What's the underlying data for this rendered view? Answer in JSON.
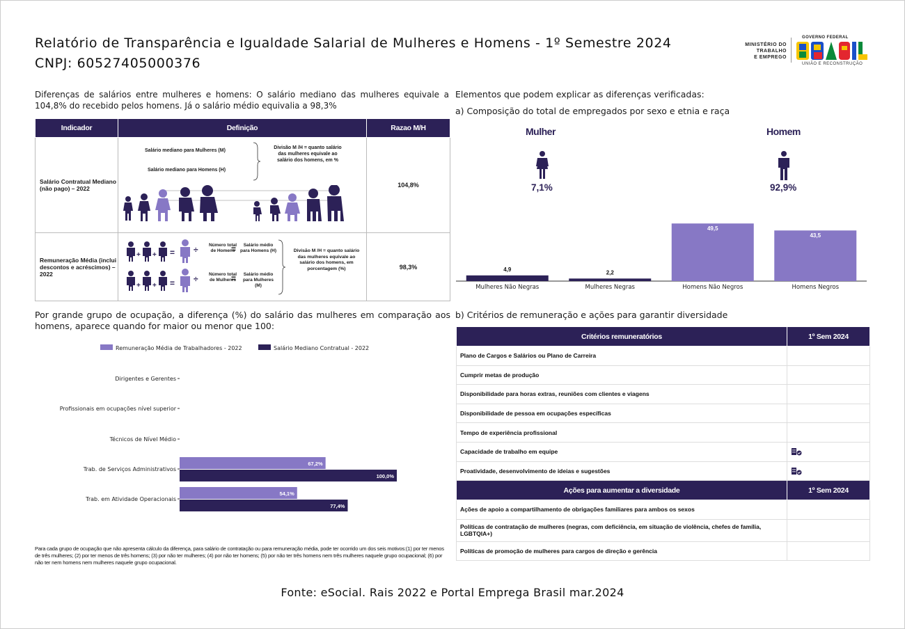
{
  "header": {
    "title": "Relatório de Transparência e Igualdade Salarial de Mulheres e Homens - 1º Semestre 2024",
    "cnpj": "CNPJ: 60527405000376",
    "ministerio": [
      "MINISTÉRIO DO",
      "TRABALHO",
      "E EMPREGO"
    ],
    "gov_top": "GOVERNO FEDERAL",
    "gov_brand": "BRASIL",
    "gov_bottom": "UNIÃO E RECONSTRUÇÃO"
  },
  "intro": "Diferenças de salários entre mulheres e homens: O salário mediano das mulheres equivale a 104,8% do recebido pelos homens. Já o salário médio equivalia a 98,3%",
  "indicator_table": {
    "headers": [
      "Indicador",
      "Definição",
      "Razao M/H"
    ],
    "rows": [
      {
        "indicator": "Salário Contratual Mediano (não pago) – 2022",
        "ratio": "104,8%",
        "def_line1": "Salário mediano para Mulheres (M)",
        "def_line2": "Salário mediano para Homens (H)",
        "def_note": "Divisão M /H = quanto salário das mulheres equivale ao salário dos homens, em %"
      },
      {
        "indicator": "Remuneração Média (inclui descontos e acréscimos) – 2022",
        "ratio": "98,3%",
        "num_homens": "Número total de Homens",
        "num_mulheres": "Número total de Mulheres",
        "sal_homens": "Salário médio para Homens (H)",
        "sal_mulheres": "Salário médio para Mulheres (M)",
        "def_note": "Divisão M /H = quanto salário das mulheres equivale ao salário dos homens, em porcentagem (%)"
      }
    ]
  },
  "right": {
    "heading": "Elementos que podem explicar as diferenças verificadas:",
    "sub_a": "a) Composição do total de empregados por sexo e etnia e raça",
    "mulher_label": "Mulher",
    "mulher_pct": "7,1%",
    "homem_label": "Homem",
    "homem_pct": "92,9%",
    "sub_b": "b) Critérios de remuneração e ações para garantir diversidade"
  },
  "chart_data": [
    {
      "type": "bar",
      "categories": [
        "Mulheres Não Negras",
        "Mulheres Negras",
        "Homens Não Negros",
        "Homens Negros"
      ],
      "values": [
        4.9,
        2.2,
        49.5,
        43.5
      ],
      "value_labels": [
        "4,9",
        "2,2",
        "49,5",
        "43,5"
      ],
      "colors": [
        "#2c2157",
        "#2c2157",
        "#8778c5",
        "#8778c5"
      ],
      "ylim": [
        0,
        55
      ]
    },
    {
      "type": "bar",
      "orientation": "horizontal",
      "categories": [
        "Dirigentes e Gerentes",
        "Profissionais em ocupações nível superior",
        "Técnicos de Nível Médio",
        "Trab. de Serviços Administrativos",
        "Trab. em Atividade Operacionais"
      ],
      "series": [
        {
          "name": "Remuneração Média de Trabalhadores - 2022",
          "color": "#8778c5",
          "values": [
            null,
            null,
            null,
            67.2,
            54.1
          ],
          "labels": [
            "",
            "",
            "",
            "67,2%",
            "54,1%"
          ]
        },
        {
          "name": "Salário Mediano Contratual - 2022",
          "color": "#2c2157",
          "values": [
            null,
            null,
            null,
            100.0,
            77.4
          ],
          "labels": [
            "",
            "",
            "",
            "100,0%",
            "77,4%"
          ]
        }
      ],
      "xlim": [
        0,
        100
      ]
    }
  ],
  "occupation_heading": "Por grande grupo de ocupação, a diferença (%) do salário das mulheres em comparação aos homens, aparece quando for maior ou menor que 100:",
  "criteria_table": {
    "header_1": "Critérios remuneratórios",
    "header_col": "1º Sem 2024",
    "criteria": [
      {
        "label": "Plano de Cargos e Salários ou Plano de Carreira",
        "checked": false
      },
      {
        "label": "Cumprir metas de produção",
        "checked": false
      },
      {
        "label": "Disponibilidade para horas extras, reuniões com clientes e viagens",
        "checked": false
      },
      {
        "label": "Disponibilidade de pessoa em ocupações específicas",
        "checked": false
      },
      {
        "label": "Tempo de experiência profissional",
        "checked": false
      },
      {
        "label": "Capacidade de trabalho em equipe",
        "checked": true
      },
      {
        "label": "Proatividade, desenvolvimento de ideias e sugestões",
        "checked": true
      }
    ],
    "header_2": "Ações para aumentar a diversidade",
    "header_col_2": "1º Sem 2024",
    "actions": [
      {
        "label": "Ações de apoio a compartilhamento de obrigações familiares para ambos os sexos"
      },
      {
        "label": "Políticas de contratação de mulheres (negras, com deficiência, em situação de violência, chefes de família, LGBTQIA+)"
      },
      {
        "label": "Políticas de promoção de mulheres para cargos de direção e gerência"
      }
    ]
  },
  "footnote": "Para cada grupo de ocupação que não apresenta cálculo da diferença, para salário de contratação ou para remuneração média, pode ter ocorrido um dos seis motivos:(1) por ter menos de três mulheres; (2) por ter menos de três homens; (3) por não ter mulheres; (4) por não ter homens; (5) por não ter três homens nem três mulheres naquele grupo ocupacional; (6) por não ter nem homens nem mulheres naquele grupo ocupacional.",
  "source": "Fonte: eSocial. Rais 2022 e Portal Emprega Brasil mar.2024"
}
